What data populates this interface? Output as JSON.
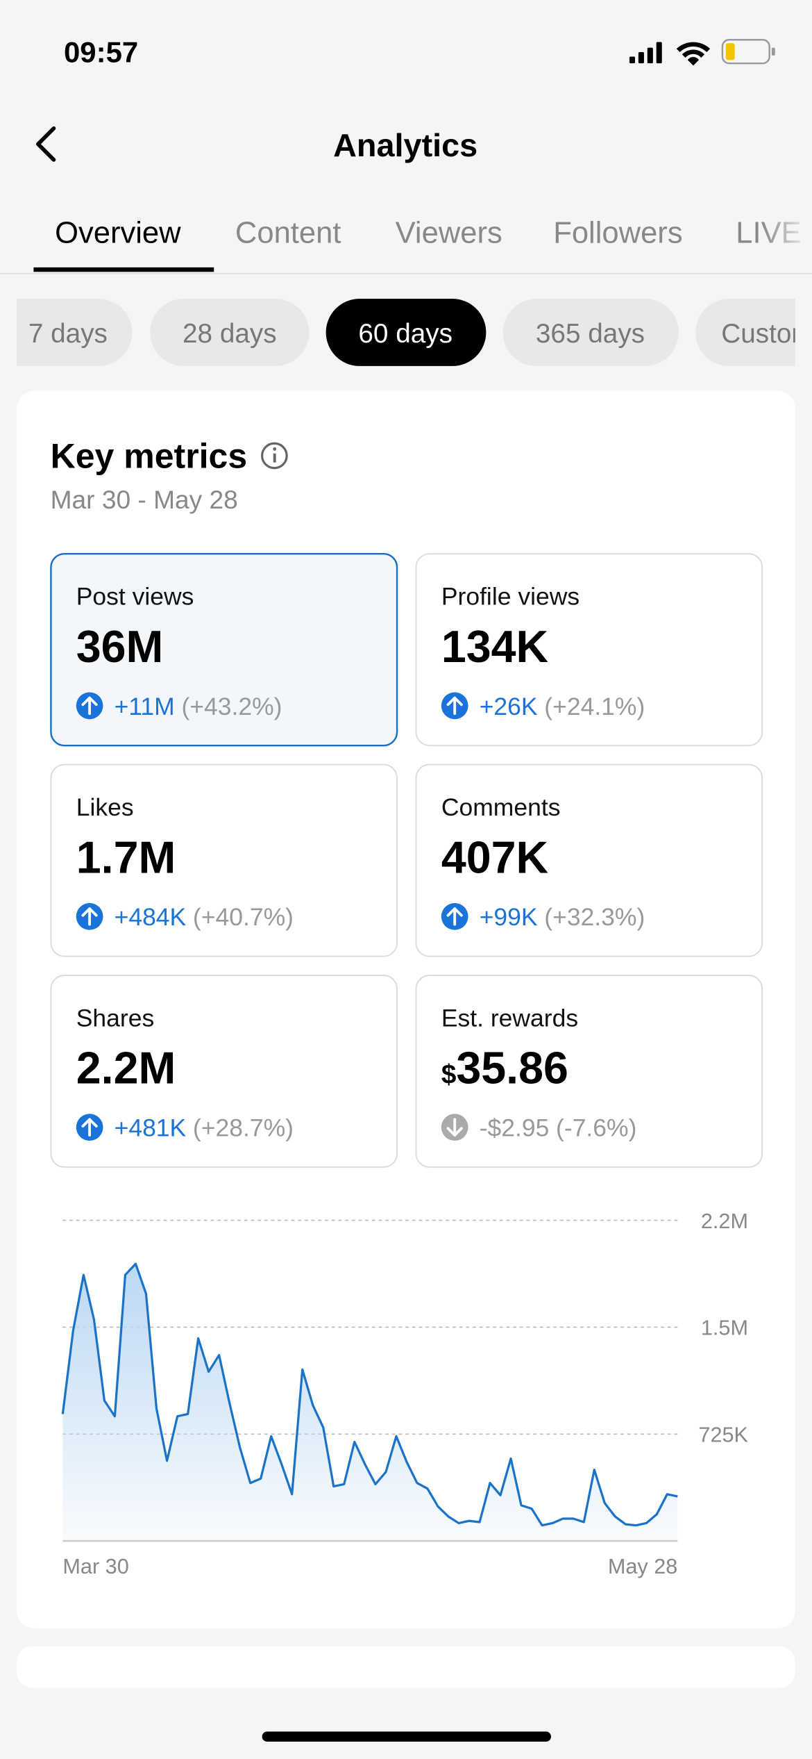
{
  "status_bar": {
    "time": "09:57"
  },
  "header": {
    "title": "Analytics"
  },
  "tabs": [
    "Overview",
    "Content",
    "Viewers",
    "Followers",
    "LIVE"
  ],
  "ranges": [
    "7 days",
    "28 days",
    "60 days",
    "365 days",
    "Custom"
  ],
  "key_metrics": {
    "title": "Key metrics",
    "date_range": "Mar 30 - May 28",
    "metrics": [
      {
        "label": "Post views",
        "value": "36M",
        "change": "+11M",
        "percent": "(+43.2%)",
        "trend": "up"
      },
      {
        "label": "Profile views",
        "value": "134K",
        "change": "+26K",
        "percent": "(+24.1%)",
        "trend": "up"
      },
      {
        "label": "Likes",
        "value": "1.7M",
        "change": "+484K",
        "percent": "(+40.7%)",
        "trend": "up"
      },
      {
        "label": "Comments",
        "value": "407K",
        "change": "+99K",
        "percent": "(+32.3%)",
        "trend": "up"
      },
      {
        "label": "Shares",
        "value": "2.2M",
        "change": "+481K",
        "percent": "(+28.7%)",
        "trend": "up"
      },
      {
        "label": "Est. rewards",
        "currency": "$",
        "value": "35.86",
        "change": "-$2.95",
        "percent": "(-7.6%)",
        "trend": "down"
      }
    ]
  },
  "chart_data": {
    "type": "line",
    "color": "#1a73c8",
    "categories": [
      "Mar 30",
      null,
      null,
      null,
      null,
      null,
      null,
      null,
      null,
      null,
      null,
      null,
      null,
      null,
      null,
      null,
      null,
      null,
      null,
      null,
      null,
      null,
      null,
      null,
      null,
      null,
      null,
      null,
      null,
      null,
      null,
      null,
      null,
      null,
      null,
      null,
      null,
      null,
      null,
      null,
      null,
      null,
      null,
      null,
      null,
      null,
      null,
      null,
      null,
      null,
      null,
      null,
      null,
      null,
      null,
      null,
      null,
      null,
      null,
      "May 28"
    ],
    "values": [
      861000,
      1427000,
      1805000,
      1503000,
      952000,
      846000,
      1805000,
      1880000,
      1677000,
      899000,
      544000,
      846000,
      861000,
      1374000,
      1148000,
      1261000,
      936000,
      634000,
      393000,
      423000,
      710000,
      521000,
      317000,
      1163000,
      921000,
      770000,
      370000,
      385000,
      672000,
      521000,
      385000,
      468000,
      710000,
      536000,
      393000,
      355000,
      234000,
      166000,
      121000,
      136000,
      128000,
      393000,
      310000,
      559000,
      242000,
      219000,
      106000,
      121000,
      151000,
      151000,
      128000,
      483000,
      257000,
      166000,
      113000,
      106000,
      121000,
      181000,
      317000,
      302000
    ],
    "ylim": [
      0,
      2175000
    ],
    "yticks": [
      {
        "value": 725000,
        "label": "725K"
      },
      {
        "value": 1450000,
        "label": "1.5M"
      },
      {
        "value": 2175000,
        "label": "2.2M"
      }
    ],
    "grid": true
  }
}
